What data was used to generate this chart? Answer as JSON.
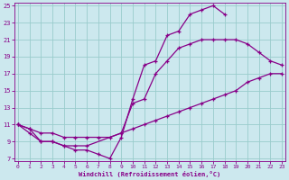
{
  "xlabel": "Windchill (Refroidissement éolien,°C)",
  "bg_color": "#cce8ee",
  "line_color": "#880088",
  "grid_color": "#99cccc",
  "xmin": 0,
  "xmax": 23,
  "ymin": 7,
  "ymax": 25,
  "yticks": [
    7,
    9,
    11,
    13,
    15,
    17,
    19,
    21,
    23,
    25
  ],
  "xticks": [
    0,
    1,
    2,
    3,
    4,
    5,
    6,
    7,
    8,
    9,
    10,
    11,
    12,
    13,
    14,
    15,
    16,
    17,
    18,
    19,
    20,
    21,
    22,
    23
  ],
  "line1_x": [
    0,
    1,
    2,
    3,
    4,
    5,
    6,
    7,
    8,
    9,
    10,
    11,
    12,
    13,
    14,
    15,
    16,
    17,
    18
  ],
  "line1_y": [
    11,
    10,
    9,
    9,
    8.5,
    8,
    8,
    7.5,
    7,
    9.5,
    14,
    18,
    18.5,
    21.5,
    22,
    24,
    24.5,
    25,
    24
  ],
  "line2_x": [
    0,
    1,
    2,
    3,
    4,
    5,
    6,
    7,
    8,
    9,
    10,
    11,
    12,
    13,
    14,
    15,
    16,
    17,
    18,
    19,
    20,
    21,
    22,
    23
  ],
  "line2_y": [
    11,
    10.5,
    10,
    10,
    9.5,
    9.5,
    9.5,
    9.5,
    9.5,
    10,
    10.5,
    11,
    11.5,
    12,
    12.5,
    13,
    13.5,
    14,
    14.5,
    15,
    16,
    16.5,
    17,
    17
  ],
  "line3_x": [
    0,
    1,
    2,
    3,
    4,
    5,
    6,
    9,
    10,
    11,
    12,
    13,
    14,
    15,
    16,
    17,
    18,
    19,
    20,
    21,
    22,
    23
  ],
  "line3_y": [
    11,
    10.5,
    9,
    9,
    8.5,
    8.5,
    8.5,
    10,
    13.5,
    14,
    17,
    18.5,
    20,
    20.5,
    21,
    21,
    21,
    21,
    20.5,
    19.5,
    18.5,
    18
  ]
}
